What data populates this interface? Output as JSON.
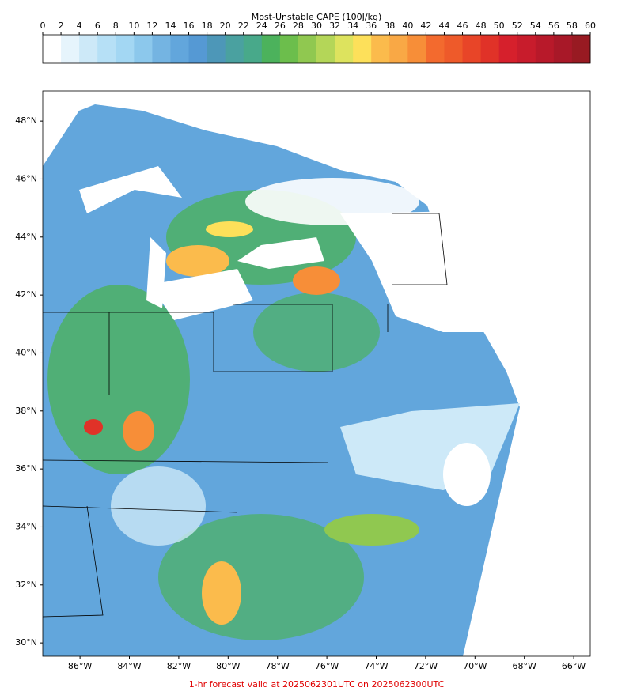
{
  "colorbar": {
    "title": "Most-Unstable CAPE (100J/kg)",
    "ticks": [
      0,
      2,
      4,
      6,
      8,
      10,
      12,
      14,
      16,
      18,
      20,
      22,
      24,
      26,
      28,
      30,
      32,
      34,
      36,
      38,
      40,
      42,
      44,
      46,
      48,
      50,
      52,
      54,
      56,
      58,
      60
    ],
    "colors": [
      "#ffffff",
      "#e6f4fc",
      "#cde9f8",
      "#b6e0f6",
      "#a3d7f3",
      "#8cc8ec",
      "#74b4e2",
      "#62a6dc",
      "#5599d4",
      "#4d97b8",
      "#4aa1a0",
      "#48a98a",
      "#4cb25c",
      "#6cbe4c",
      "#90c850",
      "#b4d658",
      "#dde35e",
      "#fde05a",
      "#fbbb4c",
      "#f9a845",
      "#f78e38",
      "#f36a2e",
      "#ee5a2a",
      "#e84528",
      "#e03228",
      "#d6202c",
      "#c81c2c",
      "#b8192a",
      "#a81828",
      "#981a22"
    ]
  },
  "map": {
    "xlim": [
      -87.51,
      -65.33
    ],
    "ylim": [
      29.54,
      49.04
    ],
    "yticks": [
      {
        "value": 30,
        "label": "30°N"
      },
      {
        "value": 32,
        "label": "32°N"
      },
      {
        "value": 34,
        "label": "34°N"
      },
      {
        "value": 36,
        "label": "36°N"
      },
      {
        "value": 38,
        "label": "38°N"
      },
      {
        "value": 40,
        "label": "40°N"
      },
      {
        "value": 42,
        "label": "42°N"
      },
      {
        "value": 44,
        "label": "44°N"
      },
      {
        "value": 46,
        "label": "46°N"
      },
      {
        "value": 48,
        "label": "48°N"
      }
    ],
    "xticks": [
      {
        "value": -86,
        "label": "86°W"
      },
      {
        "value": -84,
        "label": "84°W"
      },
      {
        "value": -82,
        "label": "82°W"
      },
      {
        "value": -80,
        "label": "80°W"
      },
      {
        "value": -78,
        "label": "78°W"
      },
      {
        "value": -76,
        "label": "76°W"
      },
      {
        "value": -74,
        "label": "74°W"
      },
      {
        "value": -72,
        "label": "72°W"
      },
      {
        "value": -70,
        "label": "70°W"
      },
      {
        "value": -68,
        "label": "68°W"
      },
      {
        "value": -66,
        "label": "66°W"
      }
    ]
  },
  "footer": "1-hr forecast valid at 2025062301UTC on 2025062300UTC"
}
